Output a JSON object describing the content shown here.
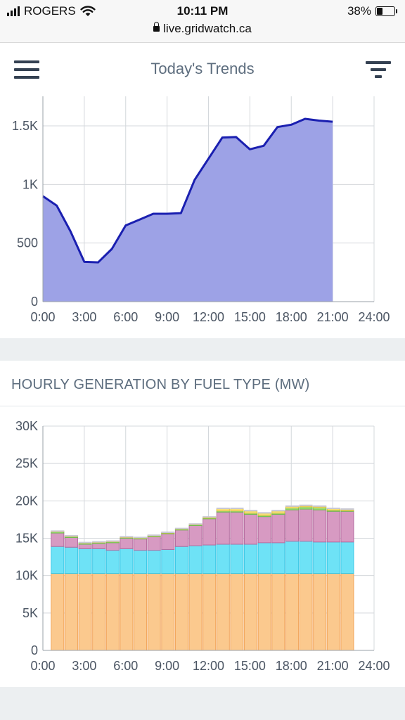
{
  "status_bar": {
    "carrier": "ROGERS",
    "time": "10:11 PM",
    "battery": "38%",
    "battery_level": 0.38,
    "url": "live.gridwatch.ca"
  },
  "header": {
    "title": "Today's Trends",
    "menu_icon": "hamburger-menu-icon",
    "filter_icon": "filter-icon"
  },
  "section_title": "HOURLY GENERATION BY FUEL TYPE (MW)",
  "chart_data": [
    {
      "type": "area",
      "title": "",
      "xlabel": "",
      "ylabel": "",
      "x_ticks": [
        "0:00",
        "3:00",
        "6:00",
        "9:00",
        "12:00",
        "15:00",
        "18:00",
        "21:00",
        "24:00"
      ],
      "y_ticks": [
        "0",
        "500",
        "1K",
        "1.5K"
      ],
      "xlim": [
        0,
        24
      ],
      "ylim": [
        0,
        1800
      ],
      "grid": true,
      "colors": {
        "fill": "#9da2e6",
        "line": "#1a1fb0"
      },
      "series": [
        {
          "x": [
            0,
            1,
            2,
            3,
            4,
            5,
            6,
            7,
            8,
            9,
            10,
            11,
            12,
            13,
            14,
            15,
            16,
            17,
            18,
            19,
            20,
            21
          ],
          "values": [
            900,
            820,
            600,
            340,
            335,
            450,
            650,
            700,
            750,
            750,
            755,
            1040,
            1220,
            1400,
            1405,
            1300,
            1330,
            1490,
            1510,
            1560,
            1545,
            1535
          ]
        }
      ]
    },
    {
      "type": "bar",
      "stacked": true,
      "title": "HOURLY GENERATION BY FUEL TYPE (MW)",
      "xlabel": "",
      "ylabel": "",
      "x_ticks": [
        "0:00",
        "3:00",
        "6:00",
        "9:00",
        "12:00",
        "15:00",
        "18:00",
        "21:00",
        "24:00"
      ],
      "y_ticks": [
        "0",
        "5K",
        "10K",
        "15K",
        "20K",
        "25K",
        "30K"
      ],
      "xlim": [
        0,
        24
      ],
      "ylim": [
        0,
        30000
      ],
      "grid": true,
      "x": [
        0,
        1,
        2,
        3,
        4,
        5,
        6,
        7,
        8,
        9,
        10,
        11,
        12,
        13,
        14,
        15,
        16,
        17,
        18,
        19,
        20,
        21
      ],
      "series": [
        {
          "color": "#fbc98e",
          "stroke": "#f2a55b",
          "values": [
            10300,
            10300,
            10300,
            10300,
            10300,
            10300,
            10300,
            10300,
            10300,
            10300,
            10300,
            10300,
            10300,
            10300,
            10300,
            10300,
            10300,
            10300,
            10300,
            10300,
            10300,
            10300
          ]
        },
        {
          "color": "#6ee2f6",
          "stroke": "#3cc8e6",
          "values": [
            3600,
            3500,
            3300,
            3300,
            3100,
            3300,
            3100,
            3100,
            3200,
            3600,
            3700,
            3800,
            3900,
            3900,
            3900,
            4100,
            4100,
            4300,
            4300,
            4200,
            4200,
            4200
          ]
        },
        {
          "color": "#d79ac2",
          "stroke": "#b56c9f",
          "values": [
            1800,
            1300,
            600,
            700,
            1000,
            1400,
            1500,
            1800,
            2100,
            2200,
            2700,
            3500,
            4300,
            4300,
            4000,
            3500,
            3800,
            4200,
            4300,
            4300,
            4100,
            4100
          ]
        },
        {
          "color": "#9ee07a",
          "stroke": "#6cc04a",
          "values": [
            150,
            120,
            120,
            120,
            120,
            100,
            100,
            100,
            100,
            100,
            100,
            100,
            150,
            150,
            150,
            150,
            150,
            250,
            300,
            300,
            150,
            100
          ]
        },
        {
          "color": "#f7e07a",
          "stroke": "#e0c040",
          "values": [
            50,
            50,
            50,
            50,
            50,
            50,
            50,
            50,
            50,
            50,
            50,
            100,
            300,
            300,
            300,
            300,
            300,
            200,
            150,
            150,
            200,
            150
          ]
        },
        {
          "color": "#e9e9f2",
          "stroke": "#c8c8d4",
          "values": [
            100,
            100,
            100,
            100,
            100,
            100,
            100,
            100,
            100,
            100,
            100,
            100,
            100,
            100,
            100,
            100,
            100,
            100,
            100,
            100,
            100,
            100
          ]
        }
      ]
    }
  ]
}
